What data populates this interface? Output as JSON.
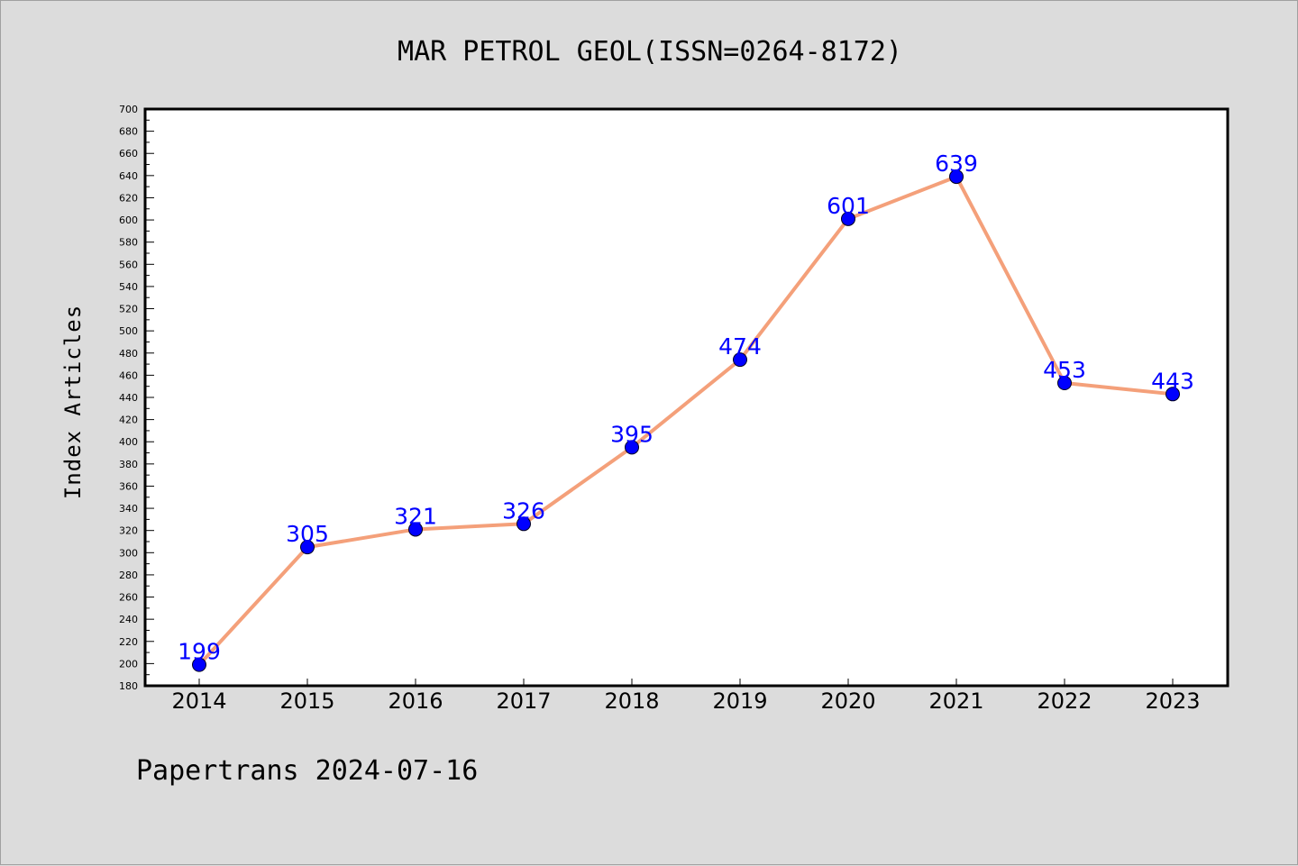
{
  "chart_data": {
    "type": "line",
    "title": "MAR PETROL GEOL(ISSN=0264-8172)",
    "ylabel": "Index Articles",
    "xlabel": "",
    "categories": [
      "2014",
      "2015",
      "2016",
      "2017",
      "2018",
      "2019",
      "2020",
      "2021",
      "2022",
      "2023"
    ],
    "values": [
      199,
      305,
      321,
      326,
      395,
      474,
      601,
      639,
      453,
      443
    ],
    "data_labels": [
      "199",
      "305",
      "321",
      "326",
      "395",
      "474",
      "601",
      "639",
      "453",
      "443"
    ],
    "ylim": [
      180,
      700
    ],
    "ytick_step": 20,
    "ytick_labels": [
      "180",
      "200",
      "220",
      "240",
      "260",
      "280",
      "300",
      "320",
      "340",
      "360",
      "380",
      "400",
      "420",
      "440",
      "460",
      "480",
      "500",
      "520",
      "540",
      "560",
      "580",
      "600",
      "620",
      "640",
      "660",
      "680",
      "700"
    ],
    "grid": false,
    "line_color": "#f4a07a",
    "marker_color": "#0000ff",
    "label_color": "#0000ff"
  },
  "footer": "Papertrans 2024-07-16",
  "colors": {
    "background": "#dcdcdc",
    "plot_background": "#ffffff"
  }
}
